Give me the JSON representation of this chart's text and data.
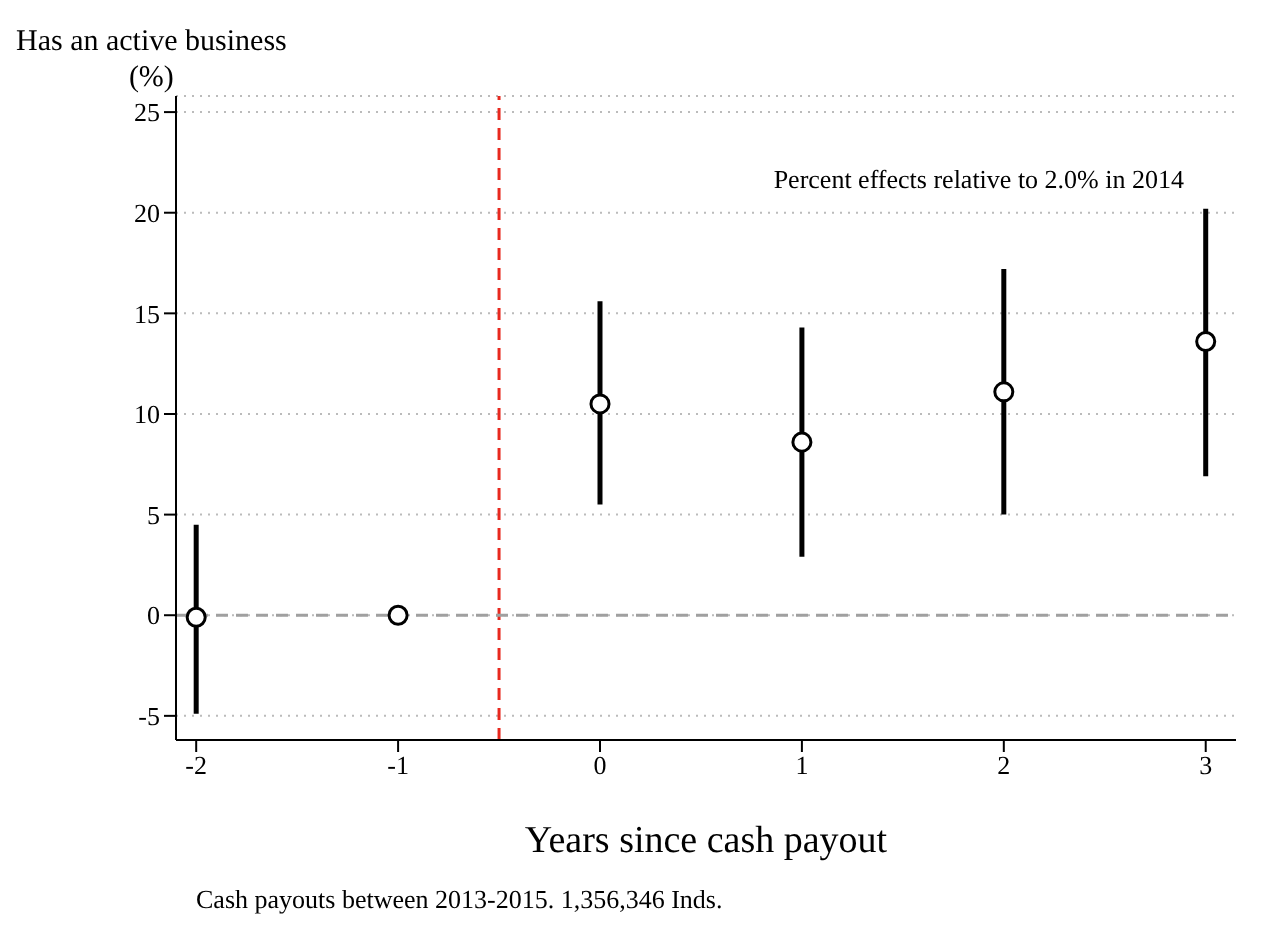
{
  "chart_data": {
    "type": "scatter",
    "ylabel": "Has an active business\n(%)",
    "xlabel": "Years since cash payout",
    "x": [
      -2,
      -1,
      0,
      1,
      2,
      3
    ],
    "values": [
      -0.1,
      0,
      10.5,
      8.6,
      11.1,
      13.6
    ],
    "errors": [
      [
        -4.9,
        4.5
      ],
      null,
      [
        5.5,
        15.6
      ],
      [
        2.9,
        14.3
      ],
      [
        5.0,
        17.2
      ],
      [
        6.9,
        20.2
      ]
    ],
    "color": "#000000",
    "marker": "circle",
    "xlim": [
      -2.1,
      3.15
    ],
    "xticks": [
      -2,
      -1,
      0,
      1,
      2,
      3
    ],
    "ylim": [
      -6.2,
      25.8
    ],
    "yticks": [
      -5,
      0,
      5,
      10,
      15,
      20,
      25
    ],
    "grid": "y",
    "ref_lines": [
      {
        "axis": "x",
        "value": -0.5,
        "color": "#e8281e",
        "line_style": "dashed"
      },
      {
        "axis": "y",
        "value": 0,
        "color": "#a0a0a0",
        "line_style": "dashed"
      }
    ],
    "annotations": [
      "Percent effects relative to 2.0% in 2014",
      "Cash payouts between 2013-2015.  1,356,346 Inds."
    ]
  }
}
